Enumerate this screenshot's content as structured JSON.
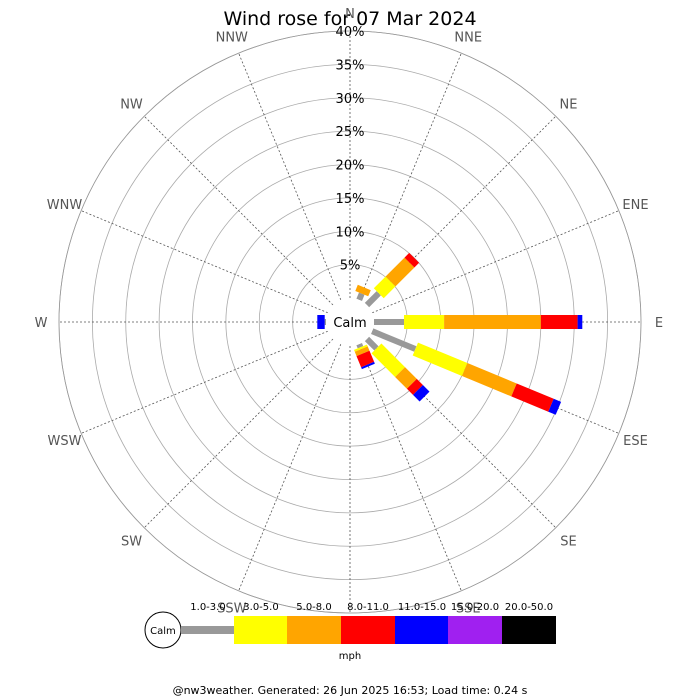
{
  "chart_data": {
    "type": "wind-rose",
    "title": "Wind rose for 07 Mar 2024",
    "calm_label": "Calm",
    "unit": "mph",
    "rmax": 40,
    "ring_values": [
      5,
      10,
      15,
      20,
      25,
      30,
      35,
      40
    ],
    "ring_labels": [
      "5%",
      "10%",
      "15%",
      "20%",
      "25%",
      "30%",
      "35%",
      "40%"
    ],
    "directions": [
      "N",
      "NNE",
      "NE",
      "ENE",
      "E",
      "ESE",
      "SE",
      "SSE",
      "S",
      "SSW",
      "SW",
      "WSW",
      "W",
      "WNW",
      "NW",
      "NNW"
    ],
    "speed_bins": [
      {
        "label": "1.0-3.0",
        "color": "#999999"
      },
      {
        "label": "3.0-5.0",
        "color": "#ffff00"
      },
      {
        "label": "5.0-8.0",
        "color": "#ffa500"
      },
      {
        "label": "8.0-11.0",
        "color": "#ff0000"
      },
      {
        "label": "11.0-15.0",
        "color": "#0000ff"
      },
      {
        "label": "15.0-20.0",
        "color": "#a020f0"
      },
      {
        "label": "20.0-50.0",
        "color": "#000000"
      }
    ],
    "cumulative_percent": {
      "N": [
        0,
        0,
        0,
        0,
        0,
        0,
        0
      ],
      "NNE": [
        1.0,
        1.0,
        2.0,
        2.0,
        2.0,
        2.0,
        2.0
      ],
      "NE": [
        2.5,
        5.0,
        9.0,
        10.0,
        10.0,
        10.0,
        10.0
      ],
      "ENE": [
        0,
        0,
        0,
        0,
        0,
        0,
        0
      ],
      "E": [
        4.5,
        10.5,
        25.0,
        30.5,
        31.2,
        31.2,
        31.2
      ],
      "ESE": [
        7.0,
        15.0,
        23.0,
        29.0,
        30.2,
        30.2,
        30.2
      ],
      "SE": [
        2.0,
        7.0,
        9.5,
        10.8,
        12.2,
        12.2,
        12.2
      ],
      "SSE": [
        0.5,
        0.8,
        1.5,
        3.3,
        3.6,
        3.6,
        3.6
      ],
      "S": [
        0,
        0,
        0,
        0,
        0,
        0,
        0
      ],
      "SSW": [
        0,
        0,
        0,
        0,
        0,
        0,
        0
      ],
      "SW": [
        0,
        0,
        0,
        0,
        0,
        0,
        0
      ],
      "WSW": [
        0,
        0,
        0,
        0,
        0,
        0,
        0
      ],
      "W": [
        0.2,
        0.2,
        0.2,
        0.2,
        1.3,
        1.3,
        1.3
      ],
      "WNW": [
        0,
        0,
        0,
        0,
        0,
        0,
        0
      ],
      "NW": [
        0,
        0,
        0,
        0,
        0,
        0,
        0
      ],
      "NNW": [
        0,
        0,
        0,
        0,
        0,
        0,
        0
      ]
    }
  },
  "footer": "@nw3weather. Generated: 26 Jun 2025 16:53; Load time: 0.24 s"
}
